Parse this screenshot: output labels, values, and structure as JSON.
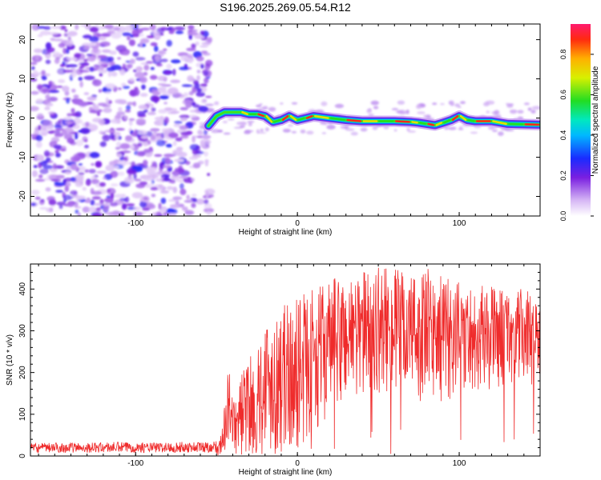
{
  "title": "S196.2025.269.05.54.R12",
  "colors": {
    "snr_line": "#ef2b2b",
    "axis": "#000000",
    "background": "#ffffff"
  },
  "chart_data": [
    {
      "type": "heatmap",
      "name": "spectrogram",
      "xlabel": "Height of straight line (km)",
      "ylabel": "Frequency (Hz)",
      "xlim": [
        -165,
        150
      ],
      "ylim": [
        -25,
        24
      ],
      "xticks": [
        "-100",
        "0",
        "100"
      ],
      "yticks": [
        "20",
        "10",
        "0",
        "-10",
        "-20"
      ],
      "colorbar": {
        "label": "Normalized spectral amplitude",
        "range": [
          0,
          0.95
        ],
        "ticks": [
          "0.0",
          "0.2",
          "0.4",
          "0.6",
          "0.8"
        ]
      },
      "noise_region_x": [
        -165,
        -55
      ],
      "signal_track": {
        "x": [
          -55,
          -50,
          -45,
          -40,
          -35,
          -30,
          -25,
          -20,
          -15,
          -10,
          -5,
          0,
          5,
          10,
          20,
          30,
          40,
          50,
          60,
          70,
          75,
          80,
          85,
          90,
          95,
          100,
          105,
          110,
          120,
          130,
          140,
          150
        ],
        "frequency_hz": [
          -2,
          0.5,
          1.5,
          1.5,
          1.5,
          1.0,
          1.0,
          0.5,
          -1.0,
          -0.5,
          0.5,
          -0.5,
          0.0,
          0.5,
          0.0,
          -0.5,
          -0.8,
          -0.8,
          -0.8,
          -1.0,
          -1.2,
          -1.5,
          -1.8,
          -1.2,
          -0.5,
          0.5,
          -0.5,
          -0.8,
          -0.8,
          -1.5,
          -1.6,
          -1.7
        ]
      }
    },
    {
      "type": "line",
      "name": "snr",
      "xlabel": "Height of straight line (km)",
      "ylabel": "SNR (10 * v/v)",
      "xlim": [
        -165,
        150
      ],
      "ylim": [
        0,
        460
      ],
      "xticks": [
        "-100",
        "0",
        "100"
      ],
      "yticks": [
        "0",
        "100",
        "200",
        "300",
        "400"
      ],
      "series": [
        {
          "name": "SNR",
          "x": [
            -165,
            -150,
            -130,
            -110,
            -90,
            -70,
            -55,
            -48,
            -45,
            -44,
            -42,
            -40,
            -35,
            -30,
            -25,
            -20,
            -15,
            -10,
            -5,
            0,
            10,
            20,
            30,
            40,
            50,
            60,
            70,
            80,
            90,
            100,
            110,
            120,
            130,
            140,
            150
          ],
          "mean": [
            20,
            20,
            20,
            20,
            20,
            20,
            20,
            20,
            50,
            140,
            80,
            45,
            70,
            100,
            125,
            150,
            175,
            195,
            210,
            225,
            250,
            280,
            300,
            315,
            320,
            320,
            310,
            305,
            300,
            300,
            300,
            300,
            300,
            300,
            300
          ],
          "envelope_high": [
            30,
            32,
            32,
            34,
            32,
            34,
            35,
            38,
            120,
            270,
            200,
            130,
            200,
            230,
            270,
            330,
            350,
            360,
            370,
            380,
            400,
            420,
            440,
            445,
            455,
            450,
            440,
            450,
            430,
            420,
            410,
            410,
            400,
            400,
            400
          ]
        }
      ]
    }
  ]
}
